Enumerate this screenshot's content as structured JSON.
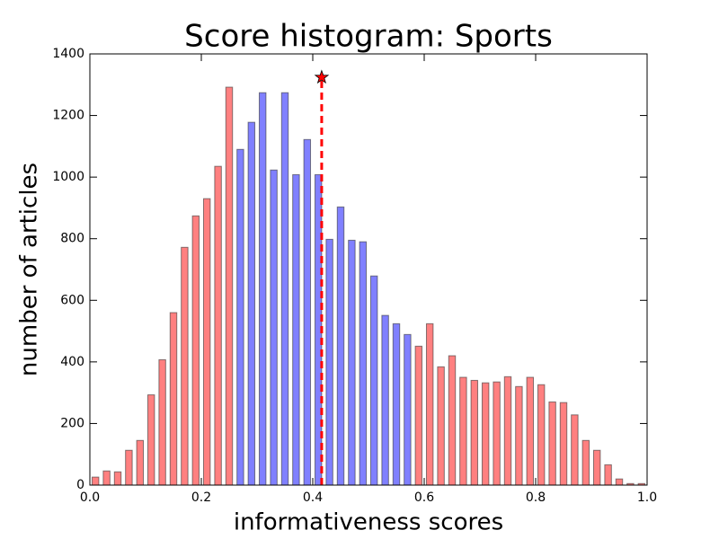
{
  "chart_data": {
    "type": "histogram",
    "title": "Score histogram: Sports",
    "x_label": "informativeness scores",
    "y_label": "number of articles",
    "bins": [
      0,
      0.02,
      0.04,
      0.06,
      0.08,
      0.1,
      0.12,
      0.14,
      0.16,
      0.18,
      0.2,
      0.22,
      0.24,
      0.26,
      0.28,
      0.3,
      0.32,
      0.34,
      0.36,
      0.38,
      0.4,
      0.42,
      0.44,
      0.46,
      0.48,
      0.5,
      0.52,
      0.54,
      0.56,
      0.58,
      0.6,
      0.62,
      0.64,
      0.66,
      0.68,
      0.7,
      0.72,
      0.74,
      0.76,
      0.78,
      0.8,
      0.82,
      0.84,
      0.86,
      0.88,
      0.9,
      0.92,
      0.94,
      0.96,
      0.98,
      1
    ],
    "counts": [
      26,
      46,
      43,
      113,
      145,
      293,
      407,
      560,
      772,
      874,
      930,
      1035,
      1292,
      1090,
      1178,
      1274,
      1023,
      1274,
      1008,
      1122,
      1008,
      798,
      903,
      795,
      790,
      679,
      551,
      524,
      489,
      451,
      524,
      384,
      420,
      350,
      340,
      332,
      335,
      352,
      320,
      350,
      326,
      270,
      268,
      228,
      145,
      113,
      66,
      20,
      5,
      5
    ],
    "colors": [
      "#ff8080",
      "#ff8080",
      "#ff8080",
      "#ff8080",
      "#ff8080",
      "#ff8080",
      "#ff8080",
      "#ff8080",
      "#ff8080",
      "#ff8080",
      "#ff8080",
      "#ff8080",
      "#ff8080",
      "#8080ff",
      "#8080ff",
      "#8080ff",
      "#8080ff",
      "#8080ff",
      "#8080ff",
      "#8080ff",
      "#8080ff",
      "#8080ff",
      "#8080ff",
      "#8080ff",
      "#8080ff",
      "#8080ff",
      "#8080ff",
      "#8080ff",
      "#8080ff",
      "#ff8080",
      "#ff8080",
      "#ff8080",
      "#ff8080",
      "#ff8080",
      "#ff8080",
      "#ff8080",
      "#ff8080",
      "#ff8080",
      "#ff8080",
      "#ff8080",
      "#ff8080",
      "#ff8080",
      "#ff8080",
      "#ff8080",
      "#ff8080",
      "#ff8080",
      "#ff8080",
      "#ff8080",
      "#ff8080",
      "#ff8080"
    ],
    "reference_line": {
      "x": 0.416,
      "y": 1324,
      "color": "#ff0000"
    },
    "xlim": [
      0,
      1
    ],
    "ylim": [
      0,
      1400
    ],
    "xticks": [
      {
        "value": 0,
        "label": "0.0"
      },
      0.2,
      0.4,
      0.6,
      0.8,
      {
        "value": 1,
        "label": "1.0"
      }
    ],
    "yticks": [
      0,
      200,
      400,
      600,
      800,
      1000,
      1200,
      1400
    ]
  }
}
